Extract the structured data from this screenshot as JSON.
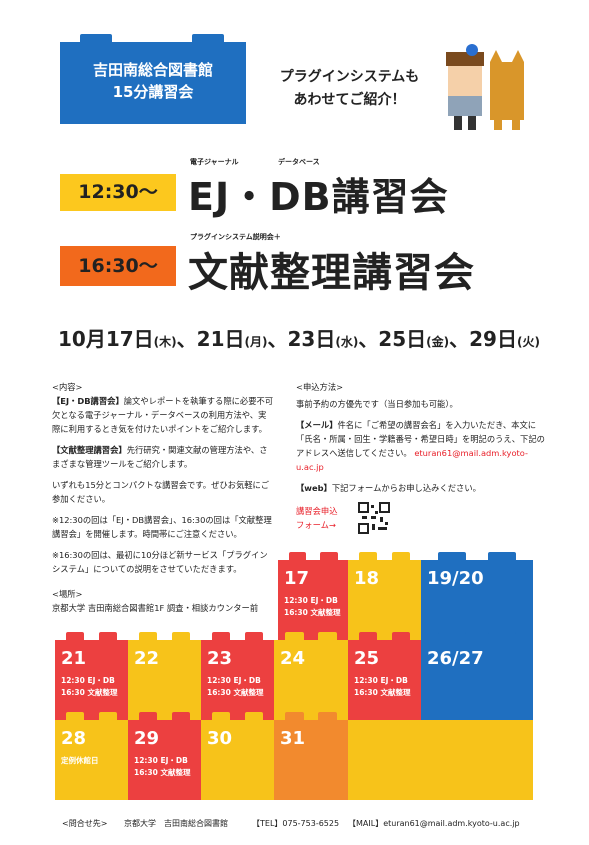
{
  "header": {
    "badge": [
      "吉田南総合図書館",
      "15分講習会"
    ],
    "bubble": [
      "プラグインシステムも",
      "あわせてご紹介！"
    ]
  },
  "sessions": [
    {
      "time": "12:30〜",
      "ruby": [
        "電子ジャーナル",
        "データベース"
      ],
      "title": "EJ・DB講習会"
    },
    {
      "time": "16:30〜",
      "ruby": [
        "プラグインシステム説明会＋"
      ],
      "title": "文献整理講習会"
    }
  ],
  "dates": [
    {
      "date": "10月17日",
      "weekday": "(木)"
    },
    {
      "date": "、21日",
      "weekday": "(月)"
    },
    {
      "date": "、23日",
      "weekday": "(水)"
    },
    {
      "date": "、25日",
      "weekday": "(金)"
    },
    {
      "date": "、29日",
      "weekday": "(火)"
    }
  ],
  "content": {
    "heading": "<内容>",
    "paragraphs": [
      {
        "bold": "【EJ・DB講習会】",
        "text": "論文やレポートを執筆する際に必要不可欠となる電子ジャーナル・データベースの利用方法や、実際に利用するとき気を付けたいポイントをご紹介します。"
      },
      {
        "bold": "【文献整理講習会】",
        "text": "先行研究・関連文献の管理方法や、さまざまな管理ツールをご紹介します。"
      },
      {
        "bold": "",
        "text": "いずれも15分とコンパクトな講習会です。ぜひお気軽にご参加ください。"
      },
      {
        "bold": "",
        "text": "※12:30の回は「EJ・DB講習会」、16:30の回は「文献整理講習会」を開催します。時間帯にご注意ください。"
      },
      {
        "bold": "",
        "text": "※16:30の回は、最初に10分ほど新サービス「プラグインシステム」についての説明をさせていただきます。"
      }
    ]
  },
  "location": {
    "heading": "<場所>",
    "text": "京都大学 吉田南総合図書館1F 調査・相談カウンター前"
  },
  "apply": {
    "heading": "<申込方法>",
    "intro": "事前予約の方優先です（当日参加も可能）。",
    "mail_label": "【メール】",
    "mail_text": "件名に「ご希望の講習会名」を入力いただき、本文に「氏名・所属・回生・学籍番号・希望日時」を明記のうえ、下記のアドレスへ送信してください。",
    "mail_address": "eturan61@mail.adm.kyoto-u.ac.jp",
    "web_label": "【web】",
    "web_text": "下記フォームからお申し込みください。",
    "form_link": [
      "講習会申込",
      "フォーム→"
    ]
  },
  "calendar": {
    "cells": [
      {
        "number": "17",
        "color": "#ec4040",
        "notes": [
          "12:30 EJ・DB",
          "16:30 文献整理"
        ]
      },
      {
        "number": "18",
        "color": "#f7c31a",
        "notes": []
      },
      {
        "number": "19/20",
        "color": "#1f6fc0",
        "notes": []
      },
      {
        "number": "21",
        "color": "#ec4040",
        "notes": [
          "12:30 EJ・DB",
          "16:30 文献整理"
        ]
      },
      {
        "number": "22",
        "color": "#f7c31a",
        "notes": []
      },
      {
        "number": "23",
        "color": "#ec4040",
        "notes": [
          "12:30 EJ・DB",
          "16:30 文献整理"
        ]
      },
      {
        "number": "24",
        "color": "#f7c31a",
        "notes": []
      },
      {
        "number": "25",
        "color": "#ec4040",
        "notes": [
          "12:30 EJ・DB",
          "16:30 文献整理"
        ]
      },
      {
        "number": "26/27",
        "color": "#1f6fc0",
        "notes": []
      },
      {
        "number": "28",
        "color": "#f7c31a",
        "notes": [
          "定例休館日"
        ]
      },
      {
        "number": "29",
        "color": "#ec4040",
        "notes": [
          "12:30 EJ・DB",
          "16:30 文献整理"
        ]
      },
      {
        "number": "30",
        "color": "#f7c31a",
        "notes": []
      },
      {
        "number": "31",
        "color": "#f28a2e",
        "notes": []
      }
    ]
  },
  "footer": {
    "label": "<問合せ先>",
    "org": "京都大学　吉田南総合図書館",
    "tel": "【TEL】075-753-6525",
    "mail": "【MAIL】eturan61@mail.adm.kyoto-u.ac.jp"
  }
}
